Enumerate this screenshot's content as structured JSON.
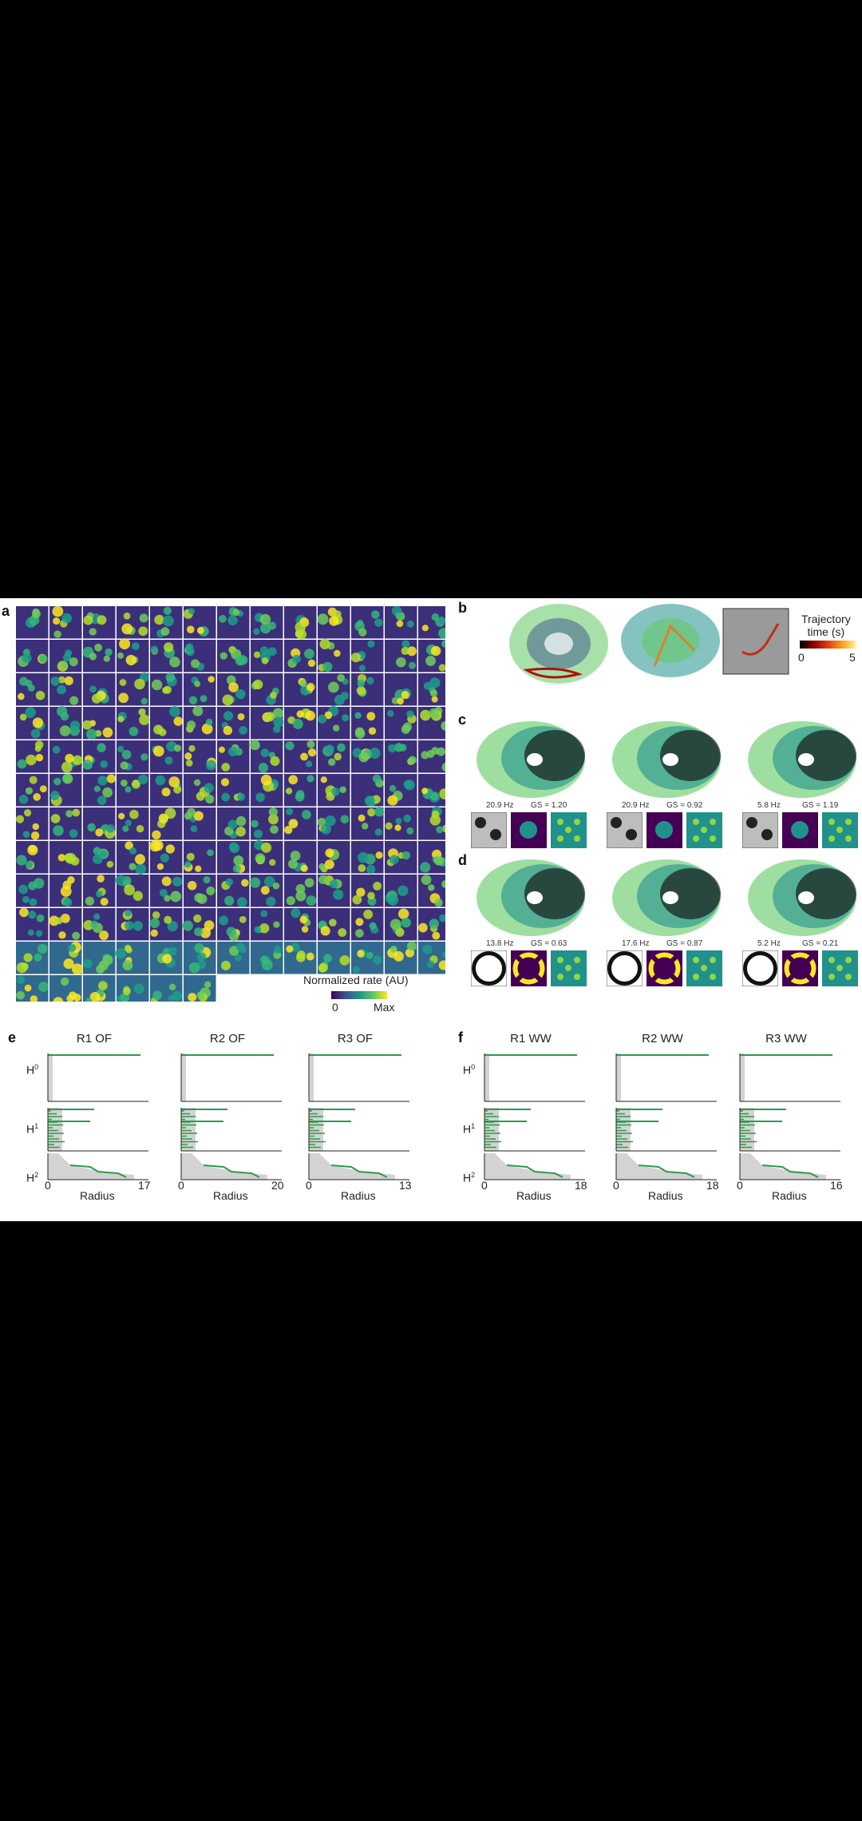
{
  "panels": {
    "a": {
      "letter": "a",
      "colorbar": {
        "title": "Normalized rate (AU)",
        "min": "0",
        "max": "Max"
      }
    },
    "b": {
      "letter": "b",
      "trajectory": {
        "title_line1": "Trajectory",
        "title_line2": "time (s)",
        "min": "0",
        "max": "5"
      }
    },
    "c": {
      "letter": "c",
      "captions": [
        {
          "rate": "20.9 Hz",
          "gs": "GS = 1.20"
        },
        {
          "rate": "20.9 Hz",
          "gs": "GS = 0.92"
        },
        {
          "rate": "5.8 Hz",
          "gs": "GS = 1.19"
        }
      ]
    },
    "d": {
      "letter": "d",
      "captions": [
        {
          "rate": "13.8 Hz",
          "gs": "GS = 0.63"
        },
        {
          "rate": "17.6 Hz",
          "gs": "GS = 0.87"
        },
        {
          "rate": "5.2 Hz",
          "gs": "GS = 0.21"
        }
      ]
    },
    "e": {
      "letter": "e",
      "barcodes": [
        {
          "title": "R1 OF",
          "xmin": "0",
          "xmax": "17",
          "xlabel": "Radius"
        },
        {
          "title": "R2 OF",
          "xmin": "0",
          "xmax": "20",
          "xlabel": "Radius"
        },
        {
          "title": "R3 OF",
          "xmin": "0",
          "xmax": "13",
          "xlabel": "Radius"
        }
      ]
    },
    "f": {
      "letter": "f",
      "barcodes": [
        {
          "title": "R1 WW",
          "xmin": "0",
          "xmax": "18",
          "xlabel": "Radius"
        },
        {
          "title": "R2 WW",
          "xmin": "0",
          "xmax": "18",
          "xlabel": "Radius"
        },
        {
          "title": "R3 WW",
          "xmin": "0",
          "xmax": "16",
          "xlabel": "Radius"
        }
      ]
    },
    "homology_labels": [
      "H",
      "H",
      "H"
    ],
    "homology_sup": [
      "0",
      "1",
      "2"
    ]
  },
  "colors": {
    "viridis_dark": "#440154",
    "viridis_mid": "#21918c",
    "viridis_light": "#fde725",
    "barcode_green": "#2e9a4a",
    "barcode_grey": "#d3d3d3"
  }
}
